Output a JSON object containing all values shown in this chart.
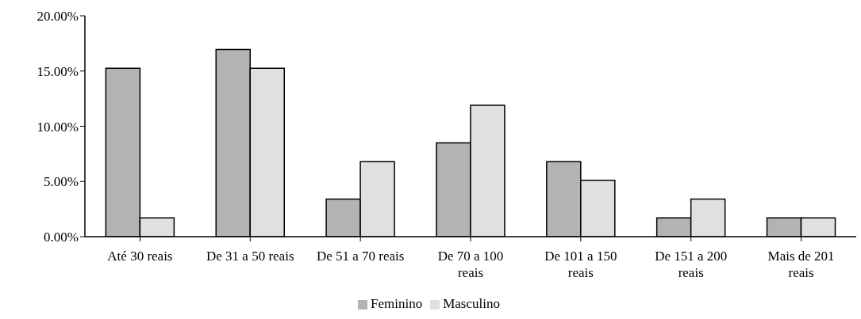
{
  "chart_data": {
    "type": "bar",
    "categories": [
      "Até 30 reais",
      "De 31 a 50 reais",
      "De 51 a 70 reais",
      "De 70 a 100 reais",
      "De 101 a 150 reais",
      "De 151 a 200 reais",
      "Mais de 201 reais"
    ],
    "series": [
      {
        "name": "Feminino",
        "color": "#b3b3b3",
        "values": [
          15.25,
          16.95,
          3.4,
          8.5,
          6.8,
          1.7,
          1.7
        ]
      },
      {
        "name": "Masculino",
        "color": "#e0e0e0",
        "values": [
          1.7,
          15.25,
          6.8,
          11.9,
          5.1,
          3.4,
          1.7
        ]
      }
    ],
    "ylim": [
      0,
      20
    ],
    "yticks": [
      {
        "value": 0,
        "label": "0.00%"
      },
      {
        "value": 5,
        "label": "5.00%"
      },
      {
        "value": 10,
        "label": "10.00%"
      },
      {
        "value": 15,
        "label": "15.00%"
      },
      {
        "value": 20,
        "label": "20.00%"
      }
    ],
    "grid": false,
    "legend": "bottom"
  }
}
